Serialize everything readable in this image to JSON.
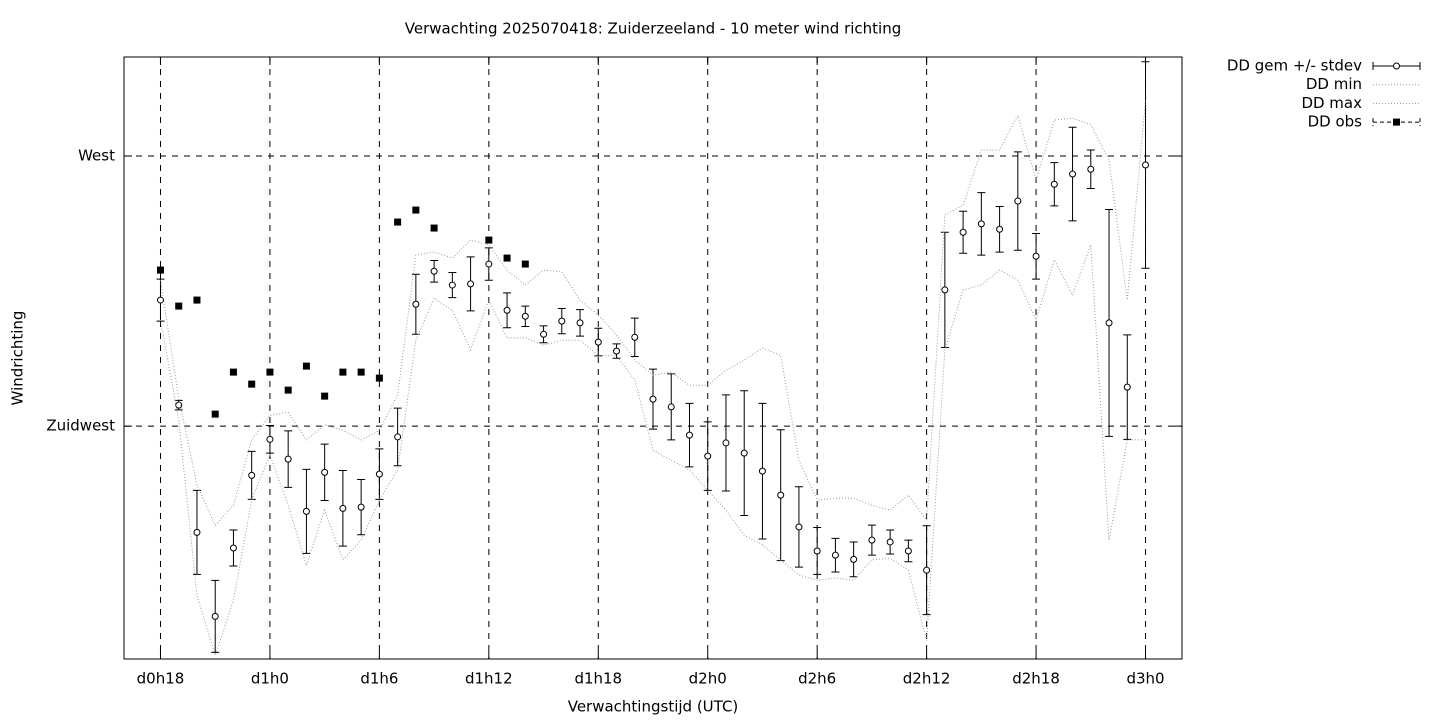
{
  "chart_data": {
    "type": "errorbar-line",
    "title": "Verwachting 2025070418: Zuiderzeeland - 10 meter wind richting",
    "xlabel": "Verwachtingstijd (UTC)",
    "ylabel": "Windrichting",
    "x": [
      18,
      19,
      20,
      21,
      22,
      23,
      24,
      25,
      26,
      27,
      28,
      29,
      30,
      31,
      32,
      33,
      34,
      35,
      36,
      37,
      38,
      39,
      40,
      41,
      42,
      43,
      44,
      45,
      46,
      47,
      48,
      49,
      50,
      51,
      52,
      53,
      54,
      55,
      56,
      57,
      58,
      59,
      60,
      61,
      62,
      63,
      64,
      65,
      66,
      67,
      68,
      69,
      70,
      71,
      72
    ],
    "xlim": [
      16,
      74
    ],
    "xticks": [
      {
        "value": 18,
        "label": "d0h18"
      },
      {
        "value": 24,
        "label": "d1h0"
      },
      {
        "value": 30,
        "label": "d1h6"
      },
      {
        "value": 36,
        "label": "d1h12"
      },
      {
        "value": 42,
        "label": "d1h18"
      },
      {
        "value": 48,
        "label": "d2h0"
      },
      {
        "value": 54,
        "label": "d2h6"
      },
      {
        "value": 60,
        "label": "d2h12"
      },
      {
        "value": 66,
        "label": "d2h18"
      },
      {
        "value": 72,
        "label": "d3h0"
      }
    ],
    "ylim": [
      186.2,
      286.5
    ],
    "yticks": [
      {
        "value": 225,
        "label": "Zuidwest"
      },
      {
        "value": 270,
        "label": "West"
      }
    ],
    "grid": true,
    "legend": "outside-top-right",
    "series": [
      {
        "name": "DD gem +/- stdev",
        "color": "#000000",
        "style": "errorbar",
        "values": [
          246,
          228.5,
          207.3,
          193.3,
          204.7,
          216.8,
          222.8,
          219.5,
          210.8,
          217.3,
          211.3,
          211.5,
          217,
          223.2,
          245.3,
          250.8,
          248.5,
          248.7,
          252,
          244.3,
          243.3,
          240.3,
          242.5,
          242.2,
          239,
          237.5,
          239.8,
          229.5,
          228.2,
          223.5,
          220,
          222.2,
          220.5,
          217.5,
          213.5,
          208.2,
          204.2,
          203.5,
          202.8,
          206,
          205.7,
          204.2,
          201,
          247.7,
          257.3,
          258.7,
          257.8,
          262.5,
          253.3,
          265.3,
          267,
          267.8,
          242.2,
          231.5,
          268.5
        ],
        "errors": [
          3.5,
          0.8,
          7,
          6,
          3,
          4,
          2.3,
          4.7,
          7,
          4.7,
          6.3,
          4.6,
          4.2,
          4.8,
          5,
          1.8,
          2.1,
          4.5,
          2.7,
          2.9,
          1.7,
          1.4,
          2.1,
          2.2,
          2.3,
          1.2,
          3.2,
          5,
          5.5,
          5.3,
          5.7,
          8,
          10.4,
          11.3,
          10.9,
          6.7,
          3.9,
          2.8,
          2.9,
          2.5,
          2,
          1.8,
          7.4,
          9.6,
          3.5,
          5.2,
          3.8,
          8.2,
          3.8,
          3.6,
          7.8,
          3.2,
          18.9,
          8.7,
          17.2
        ]
      },
      {
        "name": "DD min",
        "color": "#999999",
        "style": "dotted",
        "values": [
          242.7,
          226,
          196.8,
          186.8,
          196,
          212.7,
          220.2,
          211.8,
          201.8,
          211,
          202.7,
          206,
          212.7,
          217.7,
          239.3,
          246.3,
          244.3,
          237.7,
          246,
          239.7,
          239.7,
          238.5,
          239.3,
          239.3,
          236.8,
          236.7,
          232.7,
          221,
          219.3,
          217.7,
          214.3,
          211,
          206.8,
          205.2,
          202.7,
          200.2,
          199.3,
          199.7,
          199.3,
          202.7,
          203,
          201,
          189.3,
          237.7,
          247.7,
          248.5,
          251,
          249.3,
          242.7,
          252.7,
          246.8,
          255.2,
          206,
          222.7,
          222.7
        ]
      },
      {
        "name": "DD max",
        "color": "#999999",
        "style": "dotted",
        "values": [
          249.3,
          229.7,
          215.2,
          208.5,
          211.8,
          222.7,
          226.8,
          227.3,
          222.7,
          225.2,
          224.3,
          222.7,
          224.3,
          230.2,
          253.5,
          254,
          253,
          256,
          255.2,
          251,
          248.5,
          251,
          250.7,
          246,
          243.5,
          240.2,
          236,
          233.5,
          234,
          231.8,
          231.8,
          234.3,
          236,
          238,
          236.8,
          219.3,
          212.7,
          213,
          213,
          211.8,
          211,
          213.5,
          209.3,
          260.2,
          261.8,
          271,
          271,
          276.8,
          266,
          276,
          276.3,
          275.2,
          269.3,
          246,
          279.3
        ]
      },
      {
        "name": "DD obs",
        "color": "#000000",
        "style": "points",
        "values": [
          251,
          245,
          246,
          227,
          234,
          232,
          234,
          231,
          235,
          230,
          234,
          234,
          233,
          259,
          261,
          258,
          null,
          null,
          256,
          253,
          252,
          null,
          null,
          null,
          null,
          null,
          null,
          null,
          null,
          null,
          null,
          null,
          null,
          null,
          null,
          null,
          null,
          null,
          null,
          null,
          null,
          null,
          null,
          null,
          null,
          null,
          null,
          null,
          null,
          null,
          null,
          null,
          null,
          null,
          null
        ]
      }
    ]
  }
}
